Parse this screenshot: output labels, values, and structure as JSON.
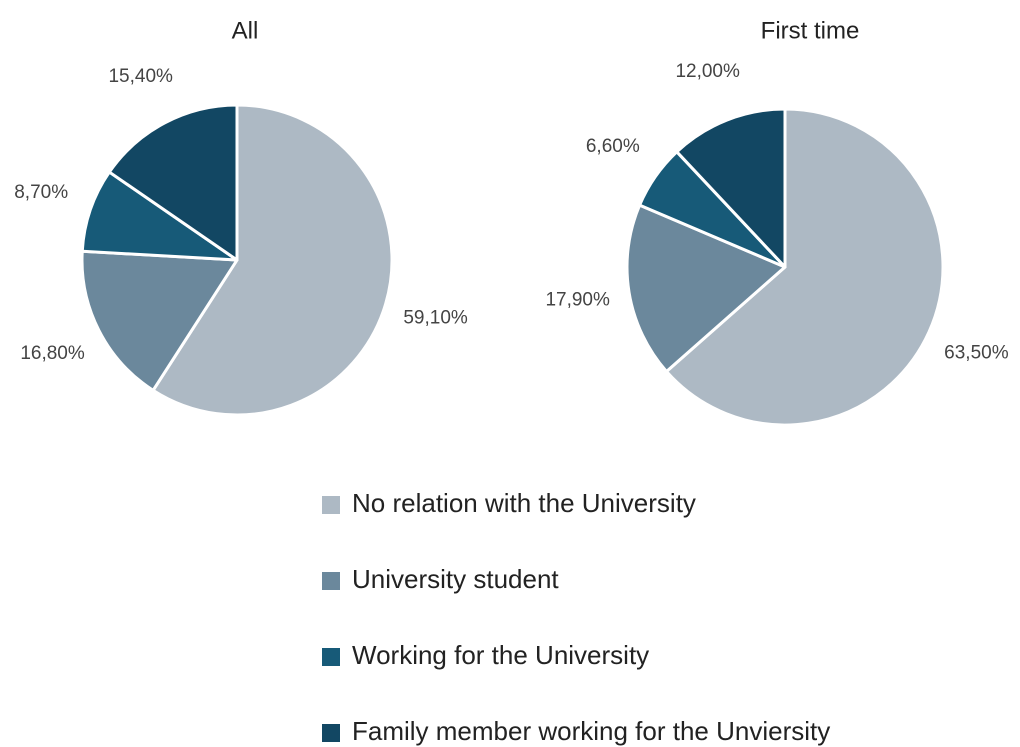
{
  "categories": [
    "No relation with the University",
    "University student",
    "Working for the University",
    "Family member working for the Unviersity"
  ],
  "colors": [
    "#adb9c4",
    "#6b889c",
    "#175a78",
    "#124763"
  ],
  "chart_data": [
    {
      "type": "pie",
      "title": "All",
      "values": [
        59.1,
        16.8,
        8.7,
        15.4
      ],
      "value_labels": [
        "59,10%",
        "16,80%",
        "8,70%",
        "15,40%"
      ]
    },
    {
      "type": "pie",
      "title": "First time",
      "values": [
        63.5,
        17.9,
        6.6,
        12.0
      ],
      "value_labels": [
        "63,50%",
        "17,90%",
        "6,60%",
        "12,00%"
      ]
    }
  ]
}
